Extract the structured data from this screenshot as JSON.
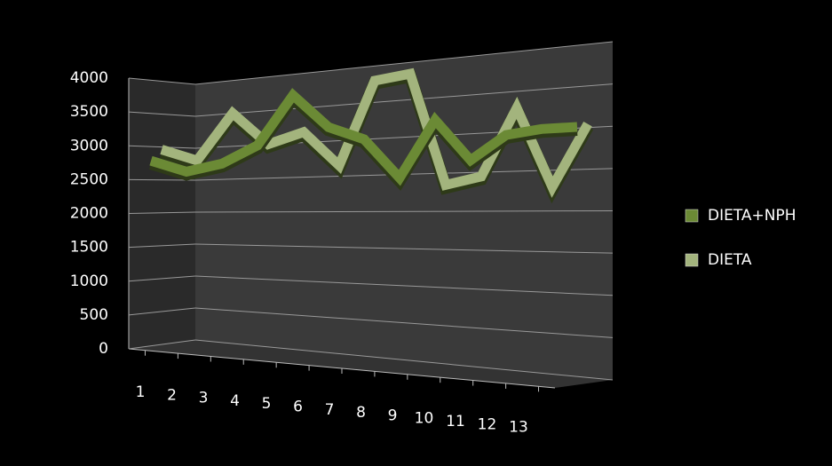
{
  "chart_data": {
    "type": "line3d",
    "categories": [
      "1",
      "2",
      "3",
      "4",
      "5",
      "6",
      "7",
      "8",
      "9",
      "10",
      "11",
      "12",
      "13"
    ],
    "series": [
      {
        "name": "DIETA+NPH",
        "color": "#6b8a35",
        "values": [
          2950,
          2750,
          2850,
          3100,
          3800,
          3300,
          3100,
          2550,
          3300,
          2750,
          3050,
          3100,
          3100
        ]
      },
      {
        "name": "DIETA",
        "color": "#a3b47d",
        "values": [
          2950,
          2750,
          3450,
          2950,
          3100,
          2600,
          3750,
          3800,
          2300,
          2400,
          3250,
          2250,
          3000
        ]
      }
    ],
    "ylim": [
      0,
      4000
    ],
    "yticks": [
      0,
      500,
      1000,
      1500,
      2000,
      2500,
      3000,
      3500,
      4000
    ],
    "grid": true,
    "legend": "right"
  }
}
